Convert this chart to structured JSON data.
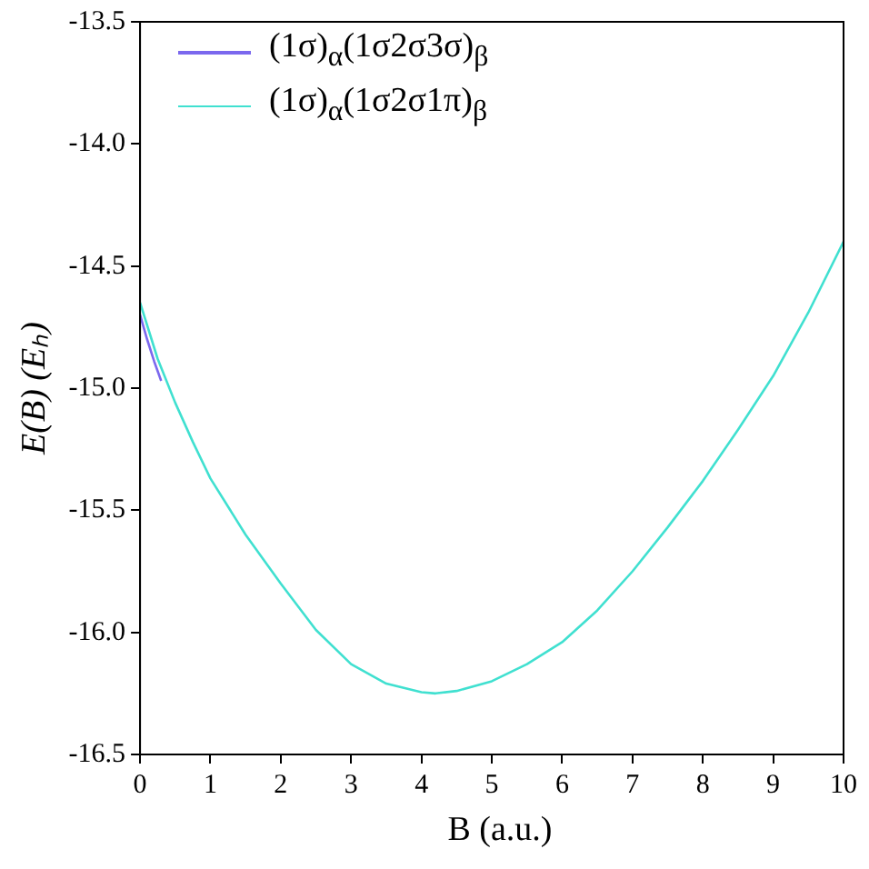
{
  "chart_data": {
    "type": "line",
    "xlabel": "B (a.u.)",
    "ylabel": "E(B) (Eₕ)",
    "xlim": [
      0,
      10
    ],
    "xticks": [
      0,
      1,
      2,
      3,
      4,
      5,
      6,
      7,
      8,
      9,
      10
    ],
    "ylim": [
      -16.5,
      -13.5
    ],
    "yticks": [
      {
        "value": -16.5,
        "label": "-16.5"
      },
      {
        "value": -16,
        "label": "-16.0"
      },
      {
        "value": -15.5,
        "label": "-15.5"
      },
      {
        "value": -15,
        "label": "-15.0"
      },
      {
        "value": -14.5,
        "label": "-14.5"
      },
      {
        "value": -14,
        "label": "-14.0"
      },
      {
        "value": -13.5,
        "label": "-13.5"
      }
    ],
    "grid": false,
    "legend": "top left",
    "marker": "none",
    "line_style": "solid",
    "series": [
      {
        "name": "(1σ)$_{α}$(1σ2σ3σ)$_{β}$",
        "color": "#7b68ee",
        "x": [
          0,
          0.1,
          0.2,
          0.3
        ],
        "values": [
          -14.7,
          -14.8,
          -14.89,
          -14.97
        ]
      },
      {
        "name": "(1σ)$_{α}$(1σ2σ1π)$_{β}$",
        "color": "#40e0d0",
        "x": [
          0,
          0.25,
          0.5,
          0.75,
          1,
          1.5,
          2,
          2.5,
          3,
          3.5,
          4,
          4.2,
          4.5,
          5,
          5.5,
          6,
          6.5,
          7,
          7.5,
          8,
          8.5,
          9,
          9.5,
          10
        ],
        "values": [
          -14.65,
          -14.88,
          -15.06,
          -15.22,
          -15.37,
          -15.6,
          -15.8,
          -15.99,
          -16.13,
          -16.21,
          -16.245,
          -16.25,
          -16.24,
          -16.2,
          -16.13,
          -16.04,
          -15.91,
          -15.75,
          -15.57,
          -15.38,
          -15.17,
          -14.95,
          -14.69,
          -14.4
        ]
      }
    ]
  }
}
